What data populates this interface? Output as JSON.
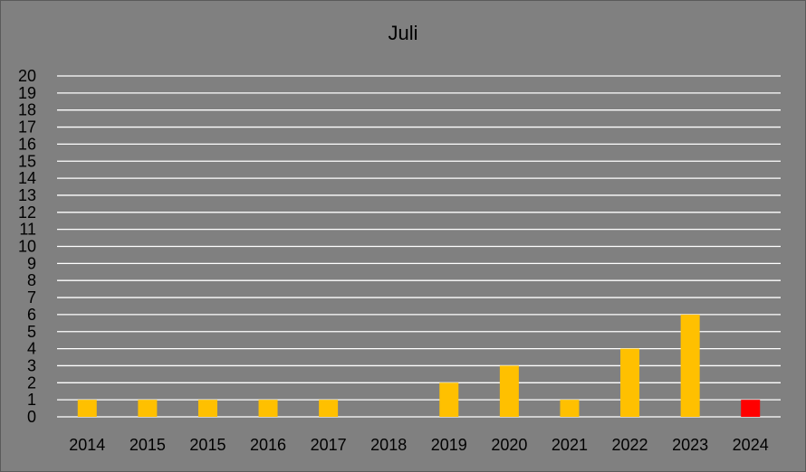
{
  "chart_data": {
    "type": "bar",
    "title": "Juli",
    "xlabel": "",
    "ylabel": "",
    "categories": [
      "2014",
      "2015",
      "2015",
      "2016",
      "2017",
      "2018",
      "2019",
      "2020",
      "2021",
      "2022",
      "2023",
      "2024"
    ],
    "values": [
      1,
      1,
      1,
      1,
      1,
      0,
      2,
      3,
      1,
      4,
      6,
      1
    ],
    "bar_colors": [
      "#ffc000",
      "#ffc000",
      "#ffc000",
      "#ffc000",
      "#ffc000",
      "#ffc000",
      "#ffc000",
      "#ffc000",
      "#ffc000",
      "#ffc000",
      "#ffc000",
      "#ff0000"
    ],
    "ylim": [
      0,
      20
    ],
    "ytick_step": 1,
    "grid": true,
    "legend": "none"
  }
}
